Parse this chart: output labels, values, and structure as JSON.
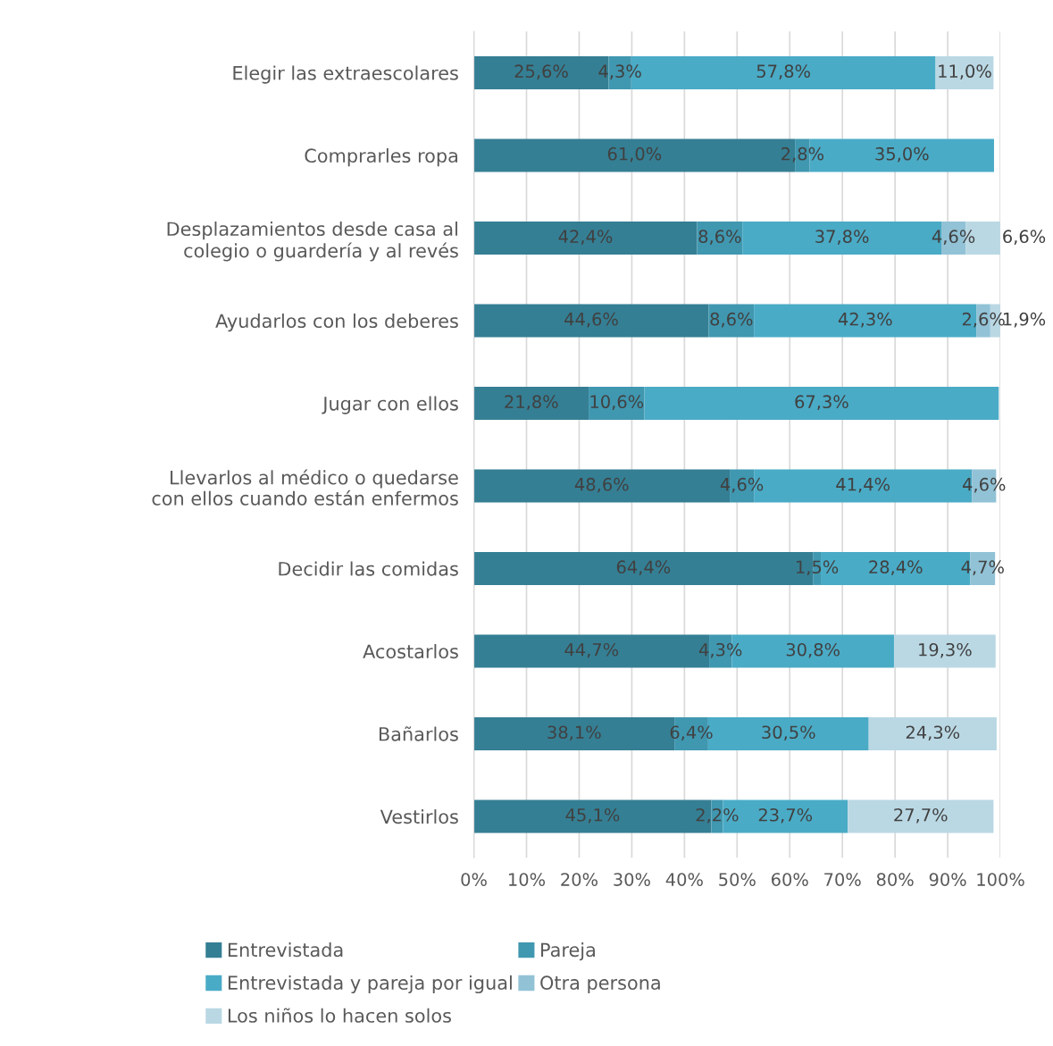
{
  "chart_data": {
    "type": "bar",
    "orientation": "horizontal",
    "stacked": true,
    "categories": [
      "Elegir las extraescolares",
      "Comprarles ropa",
      "Desplazamientos desde casa al colegio o guardería y al revés",
      "Ayudarlos con los deberes",
      "Jugar con ellos",
      "Llevarlos al médico o quedarse con ellos cuando están enfermos",
      "Decidir las comidas",
      "Acostarlos",
      "Bañarlos",
      "Vestirlos"
    ],
    "series": [
      {
        "name": "Entrevistada",
        "color": "#357f94",
        "values": [
          25.6,
          61.0,
          42.4,
          44.6,
          21.8,
          48.6,
          64.4,
          44.7,
          38.1,
          45.1
        ],
        "value_labels": [
          "25,6%",
          "61,0%",
          "42,4%",
          "44,6%",
          "21,8%",
          "48,6%",
          "64,4%",
          "44,7%",
          "38,1%",
          "45,1%"
        ]
      },
      {
        "name": "Pareja",
        "color": "#4097b0",
        "values": [
          4.3,
          2.8,
          8.6,
          8.6,
          10.6,
          4.6,
          1.5,
          4.3,
          6.4,
          2.2
        ],
        "value_labels": [
          "4,3%",
          "2,8%",
          "8,6%",
          "8,6%",
          "10,6%",
          "4,6%",
          "1,5%",
          "4,3%",
          "6,4%",
          "2,2%"
        ]
      },
      {
        "name": "Entrevistada y pareja por igual",
        "color": "#4aabc6",
        "values": [
          57.8,
          35.0,
          37.8,
          42.3,
          67.3,
          41.4,
          28.4,
          30.8,
          30.5,
          23.7
        ],
        "value_labels": [
          "57,8%",
          "35,0%",
          "37,8%",
          "42,3%",
          "67,3%",
          "41,4%",
          "28,4%",
          "30,8%",
          "30,5%",
          "23,7%"
        ]
      },
      {
        "name": "Otra persona",
        "color": "#92c2d6",
        "values": [
          null,
          null,
          4.6,
          2.6,
          null,
          4.6,
          4.7,
          null,
          null,
          null
        ],
        "value_labels": [
          null,
          null,
          "4,6%",
          "2,6%",
          null,
          "4,6%",
          "4,7%",
          null,
          null,
          null
        ]
      },
      {
        "name": "Los niños lo hacen solos",
        "color": "#bad8e4",
        "values": [
          11.0,
          null,
          6.6,
          1.9,
          null,
          null,
          null,
          19.3,
          24.3,
          27.7
        ],
        "value_labels": [
          "11,0%",
          null,
          "6,6%",
          "1,9%",
          null,
          null,
          null,
          "19,3%",
          "24,3%",
          "27,7%"
        ]
      }
    ],
    "xlim": [
      0,
      100
    ],
    "xticks": [
      {
        "value": 0,
        "label": "0%"
      },
      {
        "value": 10,
        "label": "10%"
      },
      {
        "value": 20,
        "label": "20%"
      },
      {
        "value": 30,
        "label": "30%"
      },
      {
        "value": 40,
        "label": "40%"
      },
      {
        "value": 50,
        "label": "50%"
      },
      {
        "value": 60,
        "label": "60%"
      },
      {
        "value": 70,
        "label": "70%"
      },
      {
        "value": 80,
        "label": "80%"
      },
      {
        "value": 90,
        "label": "90%"
      },
      {
        "value": 100,
        "label": "100%"
      }
    ],
    "grid": "x",
    "legend": "bottom"
  }
}
